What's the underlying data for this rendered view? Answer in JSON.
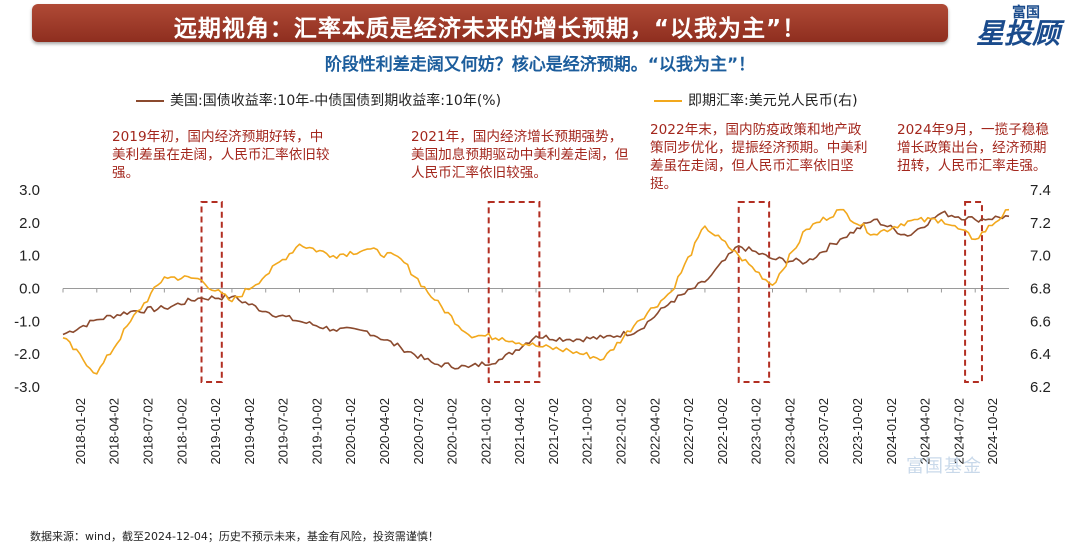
{
  "header": {
    "title": "远期视角：汇率本质是经济未来的增长预期，“以我为主”！",
    "subtitle": "阶段性利差走阔又何妨？核心是经济预期。“以我为主”！",
    "logo_top": "富国",
    "logo_main": "星投顾"
  },
  "legend": {
    "series_left": "美国:国债收益率:10年-中债国债到期收益率:10年(%)",
    "series_right": "即期汇率:美元兑人民币(右)"
  },
  "annotations": [
    "2019年初，国内经济预期好转，中美利差虽在走阔，人民币汇率依旧较强。",
    "2021年，国内经济增长预期强势，美国加息预期驱动中美利差走阔，但人民币汇率依旧较强。",
    "2022年末，国内防疫政策和地产政策同步优化，提振经济预期。中美利差虽在走阔，但人民币汇率依旧坚挺。",
    "2024年9月，一揽子稳稳增长政策出台，经济预期扭转，人民币汇率走强。"
  ],
  "source": "数据来源：wind，截至2024-12-04；历史不预示未来，基金有风险，投资需谨慎！",
  "watermark": "富国基金",
  "colors": {
    "spread": "#8b4a2e",
    "fx": "#f2a81d",
    "box": "#b22e22",
    "banner": "#a23a28"
  },
  "chart_data": {
    "type": "line",
    "left_axis": {
      "ylim": [
        -3.0,
        3.0
      ],
      "ticks": [
        "3.0",
        "2.0",
        "1.0",
        "0.0",
        "-1.0",
        "-2.0",
        "-3.0"
      ]
    },
    "right_axis": {
      "ylim": [
        6.2,
        7.4
      ],
      "ticks": [
        "7.4",
        "7.2",
        "7.0",
        "6.8",
        "6.6",
        "6.4",
        "6.2"
      ]
    },
    "x_ticks": [
      "2018-01-02",
      "2018-04-02",
      "2018-07-02",
      "2018-10-02",
      "2019-01-02",
      "2019-04-02",
      "2019-07-02",
      "2019-10-02",
      "2020-01-02",
      "2020-04-02",
      "2020-07-02",
      "2020-10-02",
      "2021-01-02",
      "2021-04-02",
      "2021-07-02",
      "2021-10-02",
      "2022-01-02",
      "2022-04-02",
      "2022-07-02",
      "2022-10-02",
      "2023-01-02",
      "2023-04-02",
      "2023-07-02",
      "2023-10-02",
      "2024-01-02",
      "2024-04-02",
      "2024-07-02",
      "2024-10-02"
    ],
    "series": [
      {
        "name": "美国:国债收益率:10年-中债国债到期收益率:10年(%)",
        "axis": "left",
        "x": [
          0,
          1,
          2,
          3,
          4,
          5,
          6,
          7,
          8,
          9,
          10,
          11,
          12,
          13,
          14,
          15,
          16,
          17,
          18,
          19,
          20,
          21,
          22,
          23,
          24,
          25,
          26,
          27,
          28
        ],
        "y": [
          -1.4,
          -0.95,
          -0.7,
          -0.6,
          -0.3,
          -0.25,
          -0.7,
          -1.0,
          -1.25,
          -1.3,
          -1.8,
          -2.3,
          -2.4,
          -2.15,
          -1.45,
          -1.55,
          -1.5,
          -1.3,
          -0.4,
          0.2,
          1.3,
          0.9,
          0.8,
          1.5,
          2.1,
          1.6,
          2.3,
          2.1,
          2.2
        ]
      },
      {
        "name": "即期汇率:美元兑人民币(右)",
        "axis": "right",
        "x": [
          0,
          1,
          2,
          3,
          4,
          5,
          6,
          7,
          8,
          9,
          10,
          11,
          12,
          13,
          14,
          15,
          16,
          17,
          18,
          19,
          20,
          21,
          22,
          23,
          24,
          25,
          26,
          27,
          28
        ],
        "y": [
          6.5,
          6.28,
          6.6,
          6.87,
          6.86,
          6.72,
          6.88,
          7.07,
          7.0,
          7.04,
          6.98,
          6.73,
          6.52,
          6.5,
          6.45,
          6.42,
          6.37,
          6.6,
          6.78,
          7.18,
          7.0,
          6.82,
          7.16,
          7.28,
          7.13,
          7.21,
          7.22,
          7.1,
          7.28
        ]
      }
    ],
    "highlight_ranges": [
      {
        "from": 4.1,
        "to": 4.7
      },
      {
        "from": 12.6,
        "to": 14.1
      },
      {
        "from": 20.0,
        "to": 20.9
      },
      {
        "from": 26.7,
        "to": 27.2
      }
    ]
  }
}
